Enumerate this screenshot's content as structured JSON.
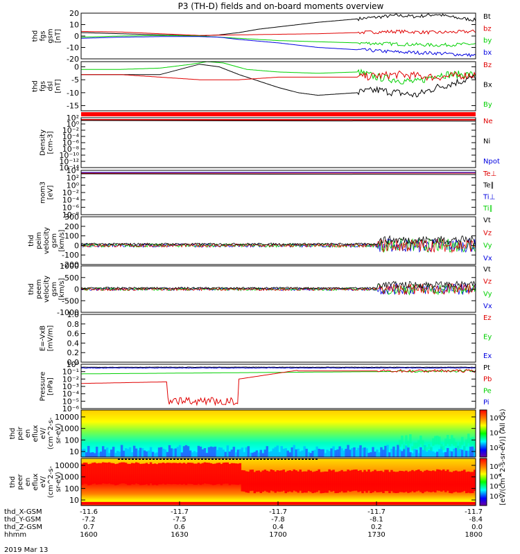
{
  "title": "P3 (TH-D) fields and on-board moments overview",
  "date": "2019 Mar 13",
  "colors": {
    "black": "#000000",
    "red": "#e00000",
    "green": "#00d000",
    "blue": "#0000e0",
    "spec_high": "#ff0000",
    "spec_mid": "#ffff00",
    "spec_low": "#00ffff"
  },
  "chart_data": [
    {
      "id": "fgs-gsm",
      "type": "line",
      "ylabel": [
        "thd",
        "fgs",
        "gsm",
        "[nT]"
      ],
      "ylim": [
        -20,
        20
      ],
      "yticks": [
        "20",
        "10",
        "0",
        "-10",
        "-20"
      ],
      "legend": [
        {
          "label": "Bt",
          "color": "#000000"
        },
        {
          "label": "bz",
          "color": "#e00000"
        },
        {
          "label": "by",
          "color": "#00d000"
        },
        {
          "label": "bx",
          "color": "#0000e0"
        }
      ],
      "series": [
        {
          "color": "#000000",
          "x": [
            0,
            0.1,
            0.2,
            0.3,
            0.35,
            0.4,
            0.45,
            0.5,
            0.6,
            0.7,
            0.8,
            0.85,
            0.9,
            0.95,
            1.0
          ],
          "y": [
            3,
            2,
            1,
            0,
            1,
            3,
            6,
            8,
            12,
            15,
            18,
            17,
            19,
            16,
            14
          ]
        },
        {
          "color": "#e00000",
          "x": [
            0,
            0.1,
            0.2,
            0.3,
            0.4,
            0.5,
            0.6,
            0.7,
            0.8,
            0.9,
            1.0
          ],
          "y": [
            4,
            3.5,
            2,
            0.5,
            1,
            1.5,
            2,
            3,
            4,
            3,
            4
          ]
        },
        {
          "color": "#00d000",
          "x": [
            0,
            0.1,
            0.2,
            0.3,
            0.35,
            0.4,
            0.5,
            0.6,
            0.7,
            0.8,
            0.9,
            1.0
          ],
          "y": [
            -1,
            0,
            0.5,
            0,
            -1,
            -2,
            -4,
            -5,
            -6,
            -7,
            -8,
            -7
          ]
        },
        {
          "color": "#0000e0",
          "x": [
            0,
            0.1,
            0.2,
            0.3,
            0.35,
            0.4,
            0.5,
            0.6,
            0.7,
            0.8,
            0.9,
            0.95,
            1.0
          ],
          "y": [
            -2,
            -1,
            -0.5,
            -0.5,
            -1,
            -3,
            -6,
            -10,
            -12,
            -14,
            -15,
            -16,
            -17
          ]
        }
      ]
    },
    {
      "id": "fgs-dsl",
      "type": "line",
      "ylabel": [
        "thd",
        "fgs",
        "dsl",
        "[nT]"
      ],
      "ylim": [
        -17,
        2
      ],
      "yticks": [
        "0",
        "-5",
        "-10",
        "-15"
      ],
      "ytick_values": [
        0,
        -5,
        -10,
        -15
      ],
      "legend": [
        {
          "label": "Bz",
          "color": "#e00000"
        },
        {
          "label": "Bx",
          "color": "#000000"
        },
        {
          "label": "By",
          "color": "#00d000"
        }
      ],
      "series": [
        {
          "color": "#00d000",
          "x": [
            0,
            0.1,
            0.2,
            0.28,
            0.32,
            0.36,
            0.42,
            0.5,
            0.6,
            0.7,
            0.75,
            0.85,
            0.9,
            1.0
          ],
          "y": [
            -1,
            -1,
            -0.5,
            1,
            2,
            1.5,
            -1,
            -2,
            -2.5,
            -2,
            -4,
            -6,
            -3,
            -3
          ]
        },
        {
          "color": "#000000",
          "x": [
            0,
            0.1,
            0.2,
            0.3,
            0.35,
            0.4,
            0.5,
            0.55,
            0.6,
            0.7,
            0.75,
            0.85,
            0.9,
            1.0
          ],
          "y": [
            -3,
            -3,
            -3,
            1,
            0,
            -3,
            -8,
            -10,
            -11,
            -10,
            -9,
            -11,
            -8,
            -4
          ]
        },
        {
          "color": "#e00000",
          "x": [
            0,
            0.1,
            0.2,
            0.3,
            0.4,
            0.5,
            0.6,
            0.7,
            0.8,
            0.9,
            1.0
          ],
          "y": [
            -3,
            -3,
            -4,
            -5,
            -5,
            -4,
            -4,
            -4,
            -3,
            -4,
            -3
          ]
        }
      ]
    },
    {
      "id": "density",
      "type": "line",
      "yscale": "log",
      "ylabel": [
        "Density",
        "[cm-3]"
      ],
      "ylim_log10": [
        -14,
        0
      ],
      "yticks": [
        "10²",
        "10⁰",
        "10⁻²",
        "10⁻⁴",
        "10⁻⁶",
        "10⁻⁸",
        "10⁻¹⁰",
        "10⁻¹²",
        "10⁻¹⁴"
      ],
      "legend": [
        {
          "label": "Ne",
          "color": "#e00000"
        },
        {
          "label": "Ni",
          "color": "#000000"
        },
        {
          "label": "Npot",
          "color": "#0000e0"
        }
      ]
    },
    {
      "id": "temperature",
      "type": "line",
      "yscale": "log",
      "ylabel": [
        "mom3",
        "[eV]"
      ],
      "yticks": [
        "10⁴",
        "10²",
        "10⁰",
        "10⁻²",
        "10⁻⁴",
        "10⁻⁶",
        "10⁻⁸"
      ],
      "legend": [
        {
          "label": "Te⊥",
          "color": "#e00000"
        },
        {
          "label": "Te∥",
          "color": "#000000"
        },
        {
          "label": "Ti⊥",
          "color": "#0000e0"
        },
        {
          "label": "Ti∥",
          "color": "#00d000"
        }
      ]
    },
    {
      "id": "peim-velocity",
      "type": "line",
      "ylabel": [
        "thd",
        "peim",
        "velocity",
        "gsm",
        "[km/s]"
      ],
      "ylim": [
        -200,
        300
      ],
      "yticks": [
        "300",
        "200",
        "100",
        "0",
        "-100",
        "-200"
      ],
      "legend": [
        {
          "label": "Vt",
          "color": "#000000"
        },
        {
          "label": "Vz",
          "color": "#e00000"
        },
        {
          "label": "Vy",
          "color": "#00d000"
        },
        {
          "label": "Vx",
          "color": "#0000e0"
        }
      ]
    },
    {
      "id": "peem-velocity",
      "type": "line",
      "ylabel": [
        "thd",
        "peem",
        "velocity",
        "gsm",
        "[km/s]"
      ],
      "ylim": [
        -1000,
        1000
      ],
      "yticks": [
        "1000",
        "500",
        "0",
        "-500",
        "-1000"
      ],
      "legend": [
        {
          "label": "Vt",
          "color": "#000000"
        },
        {
          "label": "Vz",
          "color": "#e00000"
        },
        {
          "label": "Vy",
          "color": "#00d000"
        },
        {
          "label": "Vx",
          "color": "#0000e0"
        }
      ]
    },
    {
      "id": "efield",
      "type": "line",
      "ylabel": [
        "E=-VxB",
        "[mV/m]"
      ],
      "ylim": [
        0,
        1
      ],
      "yticks": [
        "1.0",
        "0.8",
        "0.6",
        "0.4",
        "0.2",
        "0.0"
      ],
      "legend": [
        {
          "label": "Ez",
          "color": "#e00000"
        },
        {
          "label": "Ey",
          "color": "#00d000"
        },
        {
          "label": "Ex",
          "color": "#0000e0"
        }
      ]
    },
    {
      "id": "pressure",
      "type": "line",
      "yscale": "log",
      "ylabel": [
        "Pressure",
        "[nPa]"
      ],
      "ylim_log10": [
        -6,
        0
      ],
      "yticks": [
        "10⁰",
        "10⁻¹",
        "10⁻²",
        "10⁻³",
        "10⁻⁴",
        "10⁻⁵",
        "10⁻⁶"
      ],
      "legend": [
        {
          "label": "Pt",
          "color": "#000000"
        },
        {
          "label": "Pb",
          "color": "#e00000"
        },
        {
          "label": "Pe",
          "color": "#00d000"
        },
        {
          "label": "Pi",
          "color": "#0000e0"
        }
      ]
    },
    {
      "id": "peir-en-eflux",
      "type": "heatmap",
      "yscale": "log",
      "ylabel": [
        "thd",
        "peir",
        "en",
        "eflux",
        "eV/",
        "(cm^2-s-",
        "sr-eV)"
      ],
      "yticks": [
        "10000",
        "1000",
        "100",
        "10"
      ],
      "colorbar_ticks": [
        "10⁶",
        "10⁴",
        "10²"
      ]
    },
    {
      "id": "peer-en-eflux",
      "type": "heatmap",
      "yscale": "log",
      "ylabel": [
        "thd",
        "peer",
        "en",
        "eflux",
        "eV/",
        "(cm^2-s-",
        "sr-eV)"
      ],
      "yticks": [
        "10000",
        "1000",
        "100",
        "10"
      ],
      "colorbar_ticks": [
        "10⁸",
        "10⁶",
        "10⁴",
        "10²"
      ]
    }
  ],
  "colorbar_label": "[eV/(cm^2-s-sr-eV)] (All Qs)",
  "xaxis": {
    "rows": [
      {
        "label": "thd_X-GSM",
        "values": [
          "-11.6",
          "-11.7",
          "-11.7",
          "-11.7",
          "-11.7"
        ]
      },
      {
        "label": "thd_Y-GSM",
        "values": [
          "-7.2",
          "-7.5",
          "-7.8",
          "-8.1",
          "-8.4"
        ]
      },
      {
        "label": "thd_Z-GSM",
        "values": [
          "0.7",
          "0.6",
          "0.4",
          "0.2",
          "0.0"
        ]
      },
      {
        "label": "hhmm",
        "values": [
          "1600",
          "1630",
          "1700",
          "1730",
          "1800"
        ]
      }
    ]
  }
}
